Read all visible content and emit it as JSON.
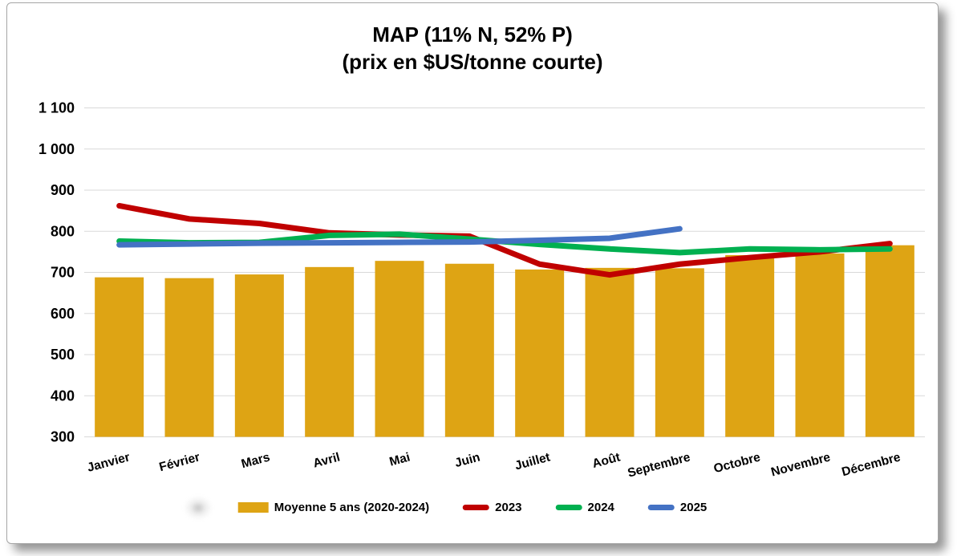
{
  "chart_data": {
    "type": "combo",
    "title": "MAP (11% N, 52% P)",
    "subtitle": "(prix en $US/tonne courte)",
    "categories": [
      "Janvier",
      "Février",
      "Mars",
      "Avril",
      "Mai",
      "Juin",
      "Juillet",
      "Août",
      "Septembre",
      "Octobre",
      "Novembre",
      "Décembre"
    ],
    "series": [
      {
        "name": "Moyenne 5 ans (2020-2024)",
        "type": "bar",
        "color": "#DEA414",
        "values": [
          688,
          686,
          695,
          713,
          728,
          721,
          707,
          711,
          710,
          742,
          746,
          766
        ]
      },
      {
        "name": "2023",
        "type": "line",
        "color": "#C00000",
        "values": [
          862,
          830,
          819,
          796,
          791,
          788,
          720,
          694,
          720,
          736,
          750,
          770
        ]
      },
      {
        "name": "2024",
        "type": "line",
        "color": "#00B050",
        "values": [
          776,
          772,
          773,
          790,
          793,
          781,
          768,
          757,
          748,
          757,
          755,
          757
        ]
      },
      {
        "name": "2025",
        "type": "line",
        "color": "#4472C4",
        "values": [
          767,
          769,
          771,
          772,
          773,
          774,
          778,
          783,
          806
        ]
      }
    ],
    "ylim": [
      300,
      1100
    ],
    "ytick_step": 100,
    "ytick_labels": [
      "300",
      "400",
      "500",
      "600",
      "700",
      "800",
      "900",
      "1 000",
      "1 100"
    ],
    "grid": true,
    "gridline_color": "#d9d9d9",
    "legend_position": "bottom",
    "xlabel": "",
    "ylabel": ""
  }
}
